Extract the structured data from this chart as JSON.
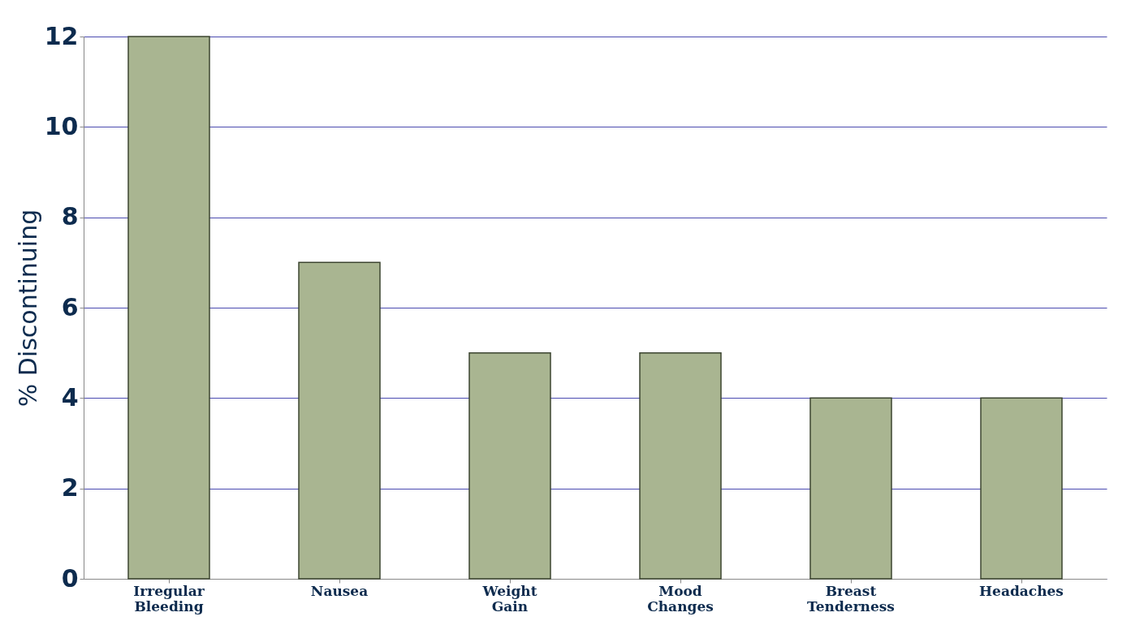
{
  "chart_data": {
    "type": "bar",
    "ylabel": "% Discontinuing",
    "categories": [
      "Irregular Bleeding",
      "Nausea",
      "Weight Gain",
      "Mood Changes",
      "Breast Tenderness",
      "Headaches"
    ],
    "values": [
      12,
      7,
      5,
      5,
      4,
      4
    ],
    "color": "#a9b591",
    "ylim": [
      0,
      12
    ],
    "yticks": [
      0,
      2,
      4,
      6,
      8,
      10,
      12
    ],
    "grid": "y"
  }
}
